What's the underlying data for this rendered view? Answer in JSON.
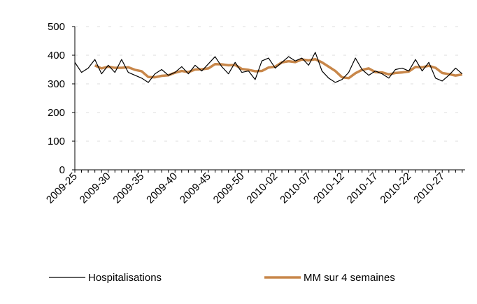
{
  "chart_data": {
    "type": "line",
    "categories": [
      "2009-25",
      null,
      null,
      null,
      null,
      "2009-30",
      null,
      null,
      null,
      null,
      "2009-35",
      null,
      null,
      null,
      null,
      "2009-40",
      null,
      null,
      null,
      null,
      "2009-45",
      null,
      null,
      null,
      null,
      "2009-50",
      null,
      null,
      null,
      null,
      "2010-02",
      null,
      null,
      null,
      null,
      "2010-07",
      null,
      null,
      null,
      null,
      "2010-12",
      null,
      null,
      null,
      null,
      "2010-17",
      null,
      null,
      null,
      null,
      "2010-22",
      null,
      null,
      null,
      null,
      "2010-27",
      null,
      null,
      null
    ],
    "series": [
      {
        "name": "Hospitalisations",
        "color": "#000000",
        "values": [
          375,
          340,
          355,
          385,
          335,
          365,
          340,
          385,
          340,
          330,
          320,
          305,
          335,
          350,
          330,
          340,
          360,
          335,
          365,
          345,
          370,
          395,
          360,
          335,
          375,
          340,
          345,
          315,
          380,
          390,
          355,
          375,
          395,
          380,
          390,
          365,
          410,
          345,
          320,
          305,
          315,
          340,
          390,
          350,
          330,
          345,
          335,
          320,
          350,
          355,
          345,
          385,
          345,
          375,
          320,
          310,
          330,
          355,
          335
        ]
      },
      {
        "name": "MM sur 4 semaines",
        "color": "#c8874a",
        "values": [
          null,
          null,
          null,
          364,
          354,
          360,
          356,
          356,
          358,
          349,
          344,
          324,
          323,
          328,
          330,
          339,
          345,
          341,
          350,
          351,
          354,
          369,
          368,
          365,
          366,
          352,
          349,
          344,
          345,
          357,
          360,
          375,
          379,
          376,
          385,
          382,
          386,
          375,
          360,
          345,
          323,
          320,
          337,
          349,
          354,
          341,
          340,
          333,
          338,
          340,
          343,
          359,
          358,
          363,
          356,
          338,
          334,
          329,
          333
        ]
      }
    ],
    "ylim": [
      0,
      500
    ],
    "yticks": [
      0,
      100,
      200,
      300,
      400,
      500
    ],
    "grid": true,
    "legend": "bottom"
  }
}
